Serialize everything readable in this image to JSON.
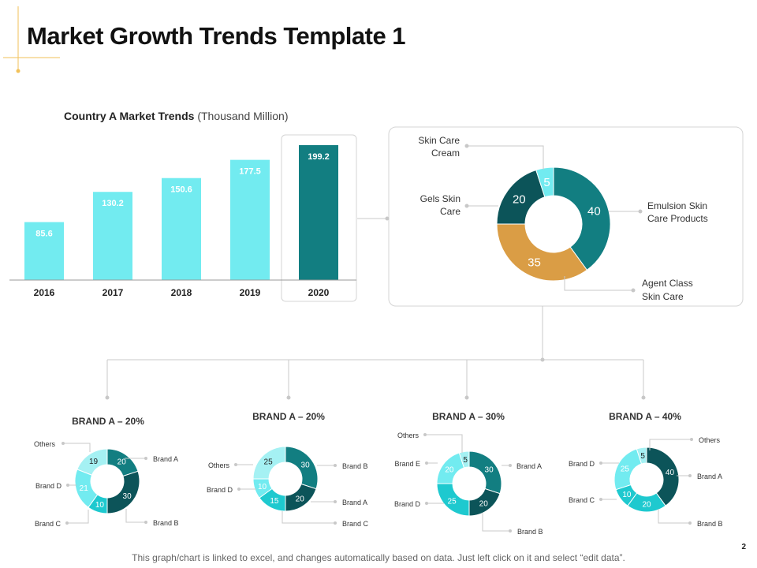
{
  "slide": {
    "title": "Market Growth Trends Template 1",
    "page_number": "2",
    "footer_note": "This graph/chart is linked to excel, and changes automatically based on data. Just left click on it and select “edit data”."
  },
  "colors": {
    "light": "#72ebf0",
    "dark": "#127e81",
    "darkest": "#0c5459",
    "mid": "#1ec9cf",
    "pale": "#a5f1f3",
    "orange": "#da9d45",
    "accent": "#f2c15a",
    "connector": "#c8c8c8"
  },
  "chart_data": [
    {
      "type": "bar",
      "title_bold": "Country A Market Trends",
      "title_rest": "(Thousand Million)",
      "categories": [
        "2016",
        "2017",
        "2018",
        "2019",
        "2020"
      ],
      "values": [
        85.6,
        130.2,
        150.6,
        177.5,
        199.2
      ],
      "value_labels": [
        "85.6",
        "130.2",
        "150.6",
        "177.5",
        "199.2"
      ],
      "highlight": "2020",
      "ylim": [
        0,
        199.2
      ]
    },
    {
      "type": "pie",
      "variant": "donut",
      "segments": [
        {
          "label": "Emulsion Skin Care Products",
          "value": 40,
          "value_label": "40"
        },
        {
          "label": "Agent Class Skin Care",
          "value": 35,
          "value_label": "35"
        },
        {
          "label": "Gels Skin Care",
          "value": 20,
          "value_label": "20"
        },
        {
          "label": "Skin Care Cream",
          "value": 5,
          "value_label": "5"
        }
      ],
      "callouts": {
        "emulsion": [
          "Emulsion Skin",
          "Care Products"
        ],
        "agent": [
          "Agent Class",
          "Skin Care"
        ],
        "gels": [
          "Gels Skin",
          "Care"
        ],
        "cream": [
          "Skin Care",
          "Cream"
        ]
      }
    },
    {
      "type": "pie",
      "variant": "donut",
      "title": "BRAND  A – 20%",
      "segments": [
        {
          "label": "Brand A",
          "value": 20,
          "value_label": "20"
        },
        {
          "label": "Brand B",
          "value": 30,
          "value_label": "30"
        },
        {
          "label": "Brand C",
          "value": 10,
          "value_label": "10"
        },
        {
          "label": "Brand D",
          "value": 21,
          "value_label": "21"
        },
        {
          "label": "Others",
          "value": 19,
          "value_label": "19"
        }
      ]
    },
    {
      "type": "pie",
      "variant": "donut",
      "title": "BRAND  A – 20%",
      "segments": [
        {
          "label": "Brand B",
          "value": 30,
          "value_label": "30"
        },
        {
          "label": "Brand A",
          "value": 20,
          "value_label": "20"
        },
        {
          "label": "Brand C",
          "value": 15,
          "value_label": "15"
        },
        {
          "label": "Brand D",
          "value": 10,
          "value_label": "10"
        },
        {
          "label": "Others",
          "value": 25,
          "value_label": "25"
        }
      ]
    },
    {
      "type": "pie",
      "variant": "donut",
      "title": "BRAND  A – 30%",
      "segments": [
        {
          "label": "Brand A",
          "value": 30,
          "value_label": "30"
        },
        {
          "label": "Brand B",
          "value": 20,
          "value_label": "20"
        },
        {
          "label": "Brand D",
          "value": 25,
          "value_label": "25"
        },
        {
          "label": "Brand E",
          "value": 20,
          "value_label": "20"
        },
        {
          "label": "Others",
          "value": 5,
          "value_label": "5"
        }
      ]
    },
    {
      "type": "pie",
      "variant": "donut",
      "title": "BRAND  A – 40%",
      "segments": [
        {
          "label": "Brand A",
          "value": 40,
          "value_label": "40"
        },
        {
          "label": "Brand B",
          "value": 20,
          "value_label": "20"
        },
        {
          "label": "Brand C",
          "value": 10,
          "value_label": "10"
        },
        {
          "label": "Brand D",
          "value": 25,
          "value_label": "25"
        },
        {
          "label": "Others",
          "value": 5,
          "value_label": "5"
        }
      ]
    }
  ]
}
